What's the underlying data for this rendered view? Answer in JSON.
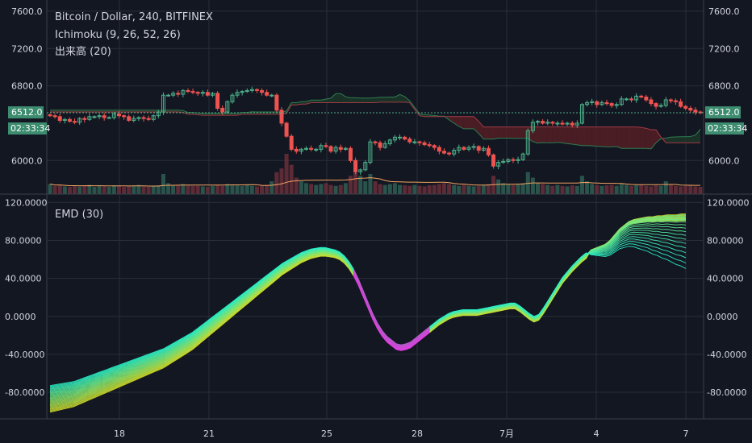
{
  "colors": {
    "background": "#131722",
    "grid": "#2a2e39",
    "text": "#d1d4dc",
    "candle_up": "#4caf89",
    "candle_down": "#ef5350",
    "kumo_bear": "#5d1f26",
    "kumo_bull": "#1d3b2a",
    "price_tag": "#3d8c70",
    "volume_ma": "#f4a460"
  },
  "chart_data": [
    {
      "type": "candlestick",
      "title": "Bitcoin / Dollar, 240, BITFINEX",
      "indicators": [
        "Ichimoku (9, 26, 52, 26)",
        "出来高 (20)"
      ],
      "y_ticks": [
        "7600.0",
        "7200.0",
        "6800.0",
        "6000.0"
      ],
      "y_tick_values": [
        7600,
        7200,
        6800,
        6000
      ],
      "ylim": [
        5640,
        7720
      ],
      "last_price": "6512.0",
      "last_price_value": 6512,
      "countdown": "02:33:34",
      "x_ticks": [
        "18",
        "21",
        "25",
        "28",
        "7月",
        "4",
        "7"
      ],
      "x_tick_positions": [
        148,
        259,
        405,
        517,
        628,
        739,
        850
      ],
      "candles_close": [
        6480,
        6470,
        6430,
        6440,
        6420,
        6410,
        6450,
        6440,
        6470,
        6470,
        6480,
        6460,
        6460,
        6500,
        6480,
        6470,
        6430,
        6450,
        6460,
        6450,
        6440,
        6480,
        6520,
        6700,
        6700,
        6720,
        6710,
        6750,
        6740,
        6730,
        6720,
        6730,
        6700,
        6720,
        6560,
        6520,
        6630,
        6700,
        6730,
        6740,
        6750,
        6760,
        6750,
        6730,
        6700,
        6700,
        6540,
        6400,
        6260,
        6120,
        6100,
        6120,
        6130,
        6120,
        6120,
        6160,
        6150,
        6100,
        6140,
        6120,
        6130,
        6000,
        5880,
        5900,
        5980,
        6200,
        6190,
        6140,
        6180,
        6220,
        6250,
        6250,
        6230,
        6200,
        6200,
        6190,
        6170,
        6160,
        6140,
        6100,
        6080,
        6070,
        6110,
        6140,
        6120,
        6140,
        6150,
        6110,
        6130,
        6060,
        5940,
        5980,
        5990,
        6010,
        6000,
        6010,
        6070,
        6320,
        6410,
        6420,
        6400,
        6410,
        6400,
        6400,
        6390,
        6400,
        6380,
        6400,
        6600,
        6620,
        6630,
        6600,
        6620,
        6610,
        6590,
        6600,
        6660,
        6660,
        6650,
        6690,
        6680,
        6650,
        6610,
        6580,
        6590,
        6650,
        6640,
        6630,
        6580,
        6560,
        6540,
        6520,
        6512
      ],
      "volume": [
        0.55,
        0.45,
        0.5,
        0.42,
        0.4,
        0.45,
        0.42,
        0.48,
        0.5,
        0.4,
        0.45,
        0.42,
        0.4,
        0.48,
        0.45,
        0.4,
        0.42,
        0.45,
        0.5,
        0.42,
        0.4,
        0.42,
        0.48,
        1.1,
        0.6,
        0.5,
        0.48,
        0.55,
        0.5,
        0.45,
        0.45,
        0.42,
        0.4,
        0.45,
        0.5,
        0.45,
        0.55,
        0.5,
        0.48,
        0.45,
        0.5,
        0.45,
        0.42,
        0.48,
        0.5,
        0.7,
        1.2,
        1.4,
        2.2,
        1.6,
        0.9,
        0.7,
        0.6,
        0.55,
        0.5,
        0.55,
        0.6,
        0.5,
        0.45,
        0.5,
        0.6,
        1.0,
        1.3,
        1.0,
        0.7,
        1.1,
        0.7,
        0.55,
        0.5,
        0.55,
        0.6,
        0.5,
        0.48,
        0.45,
        0.5,
        0.45,
        0.42,
        0.48,
        0.5,
        0.55,
        0.6,
        0.55,
        0.5,
        0.45,
        0.5,
        0.45,
        0.42,
        0.45,
        0.5,
        0.55,
        1.0,
        0.8,
        0.6,
        0.55,
        0.5,
        0.55,
        0.6,
        1.2,
        0.9,
        0.6,
        0.55,
        0.5,
        0.45,
        0.5,
        0.45,
        0.42,
        0.48,
        0.45,
        1.0,
        0.7,
        0.55,
        0.5,
        0.45,
        0.48,
        0.5,
        0.45,
        0.55,
        0.5,
        0.45,
        0.48,
        0.5,
        0.45,
        0.42,
        0.48,
        0.45,
        0.7,
        0.5,
        0.45,
        0.42,
        0.45,
        0.5,
        0.42,
        0.4
      ]
    },
    {
      "type": "line",
      "title": "EMD (30)",
      "y_ticks": [
        "120.0000",
        "80.0000",
        "40.0000",
        "0.0000",
        "-40.0000",
        "-80.0000"
      ],
      "y_tick_values": [
        120,
        80,
        40,
        0,
        -40,
        -80
      ],
      "ylim": [
        -108,
        128
      ],
      "x_ticks": [
        "18",
        "21",
        "25",
        "28",
        "7月",
        "4",
        "7"
      ],
      "series_count": 30,
      "base_series": [
        -87,
        -86,
        -85,
        -84,
        -83,
        -82,
        -80,
        -78,
        -76,
        -74,
        -72,
        -70,
        -68,
        -66,
        -64,
        -62,
        -60,
        -58,
        -56,
        -54,
        -52,
        -50,
        -48,
        -46,
        -44,
        -41,
        -38,
        -35,
        -32,
        -29,
        -26,
        -22,
        -18,
        -14,
        -10,
        -6,
        -2,
        2,
        6,
        10,
        14,
        18,
        22,
        26,
        30,
        34,
        38,
        42,
        46,
        50,
        53,
        56,
        59,
        62,
        64,
        66,
        67,
        68,
        68,
        67,
        66,
        64,
        60,
        54,
        46,
        36,
        24,
        12,
        0,
        -10,
        -18,
        -24,
        -28,
        -32,
        -33,
        -32,
        -30,
        -26,
        -22,
        -18,
        -14,
        -10,
        -6,
        -3,
        0,
        2,
        3,
        4,
        4,
        4,
        4,
        5,
        6,
        7,
        8,
        9,
        10,
        11,
        11,
        8,
        4,
        0,
        -3,
        -1,
        6,
        14,
        22,
        30,
        38,
        44,
        50,
        55,
        60,
        64,
        66,
        68,
        70,
        72,
        76,
        82,
        88,
        92,
        96,
        98,
        99,
        100,
        101,
        101,
        102,
        102,
        103,
        103,
        103,
        104,
        104
      ],
      "spread_left": 28,
      "spread_right_low": 72,
      "spread_right_high": 2
    }
  ]
}
